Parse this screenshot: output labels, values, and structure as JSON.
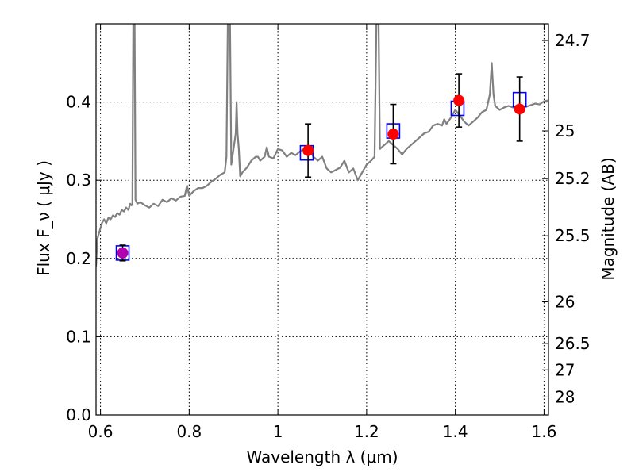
{
  "chart_data": {
    "type": "line",
    "xlabel": "Wavelength  λ (μm)",
    "ylabel": "Flux  F_ν  ( μJy )",
    "ylabel_right": "Magnitude (AB)",
    "xlim": [
      0.59,
      1.61
    ],
    "ylim": [
      0.0,
      0.5
    ],
    "grid": true,
    "x_ticks": [
      {
        "value": 0.6,
        "label": "0.6"
      },
      {
        "value": 0.8,
        "label": "0.8"
      },
      {
        "value": 1.0,
        "label": "1"
      },
      {
        "value": 1.2,
        "label": "1.2"
      },
      {
        "value": 1.4,
        "label": "1.4"
      },
      {
        "value": 1.6,
        "label": "1.6"
      }
    ],
    "y_ticks": [
      {
        "value": 0.0,
        "label": "0.0"
      },
      {
        "value": 0.1,
        "label": "0.1"
      },
      {
        "value": 0.2,
        "label": "0.2"
      },
      {
        "value": 0.3,
        "label": "0.3"
      },
      {
        "value": 0.4,
        "label": "0.4"
      }
    ],
    "right_ticks": [
      {
        "mag": 24.7,
        "label": "24.7"
      },
      {
        "mag": 25.0,
        "label": "25"
      },
      {
        "mag": 25.2,
        "label": "25.2"
      },
      {
        "mag": 25.5,
        "label": "25.5"
      },
      {
        "mag": 26.0,
        "label": "26"
      },
      {
        "mag": 26.5,
        "label": "26.5"
      },
      {
        "mag": 27.0,
        "label": "27"
      },
      {
        "mag": 28.0,
        "label": "28"
      }
    ],
    "colors": {
      "model": "#808080",
      "model_box": "#0000ff",
      "observed": "#ff0000",
      "observed_first": "#b000b0",
      "errorbar": "#000000"
    },
    "series": [
      {
        "kind": "model_spectrum",
        "points": [
          [
            0.59,
            0.19
          ],
          [
            0.593,
            0.225
          ],
          [
            0.598,
            0.235
          ],
          [
            0.603,
            0.245
          ],
          [
            0.608,
            0.25
          ],
          [
            0.613,
            0.245
          ],
          [
            0.618,
            0.252
          ],
          [
            0.623,
            0.25
          ],
          [
            0.628,
            0.255
          ],
          [
            0.633,
            0.253
          ],
          [
            0.638,
            0.258
          ],
          [
            0.643,
            0.256
          ],
          [
            0.648,
            0.262
          ],
          [
            0.653,
            0.26
          ],
          [
            0.658,
            0.265
          ],
          [
            0.663,
            0.262
          ],
          [
            0.667,
            0.27
          ],
          [
            0.67,
            0.268
          ],
          [
            0.672,
            0.27
          ],
          [
            0.674,
            0.5
          ],
          [
            0.677,
            0.5
          ],
          [
            0.679,
            0.275
          ],
          [
            0.683,
            0.27
          ],
          [
            0.69,
            0.272
          ],
          [
            0.7,
            0.268
          ],
          [
            0.71,
            0.265
          ],
          [
            0.72,
            0.27
          ],
          [
            0.73,
            0.267
          ],
          [
            0.74,
            0.275
          ],
          [
            0.75,
            0.272
          ],
          [
            0.76,
            0.277
          ],
          [
            0.77,
            0.274
          ],
          [
            0.78,
            0.279
          ],
          [
            0.79,
            0.28
          ],
          [
            0.795,
            0.293
          ],
          [
            0.8,
            0.28
          ],
          [
            0.81,
            0.286
          ],
          [
            0.82,
            0.29
          ],
          [
            0.83,
            0.29
          ],
          [
            0.84,
            0.293
          ],
          [
            0.85,
            0.298
          ],
          [
            0.86,
            0.302
          ],
          [
            0.87,
            0.307
          ],
          [
            0.88,
            0.31
          ],
          [
            0.884,
            0.33
          ],
          [
            0.887,
            0.5
          ],
          [
            0.892,
            0.5
          ],
          [
            0.895,
            0.32
          ],
          [
            0.9,
            0.34
          ],
          [
            0.905,
            0.36
          ],
          [
            0.907,
            0.4
          ],
          [
            0.909,
            0.36
          ],
          [
            0.912,
            0.34
          ],
          [
            0.915,
            0.305
          ],
          [
            0.92,
            0.31
          ],
          [
            0.93,
            0.316
          ],
          [
            0.94,
            0.325
          ],
          [
            0.95,
            0.33
          ],
          [
            0.955,
            0.33
          ],
          [
            0.96,
            0.325
          ],
          [
            0.97,
            0.33
          ],
          [
            0.975,
            0.342
          ],
          [
            0.98,
            0.33
          ],
          [
            0.99,
            0.328
          ],
          [
            1.0,
            0.34
          ],
          [
            1.01,
            0.338
          ],
          [
            1.02,
            0.33
          ],
          [
            1.03,
            0.335
          ],
          [
            1.04,
            0.332
          ],
          [
            1.05,
            0.337
          ],
          [
            1.06,
            0.34
          ],
          [
            1.07,
            0.34
          ],
          [
            1.08,
            0.33
          ],
          [
            1.09,
            0.325
          ],
          [
            1.1,
            0.33
          ],
          [
            1.11,
            0.315
          ],
          [
            1.12,
            0.31
          ],
          [
            1.13,
            0.313
          ],
          [
            1.14,
            0.316
          ],
          [
            1.15,
            0.325
          ],
          [
            1.16,
            0.31
          ],
          [
            1.17,
            0.315
          ],
          [
            1.18,
            0.3
          ],
          [
            1.19,
            0.31
          ],
          [
            1.2,
            0.32
          ],
          [
            1.21,
            0.325
          ],
          [
            1.218,
            0.33
          ],
          [
            1.222,
            0.5
          ],
          [
            1.227,
            0.5
          ],
          [
            1.23,
            0.34
          ],
          [
            1.24,
            0.345
          ],
          [
            1.25,
            0.35
          ],
          [
            1.26,
            0.345
          ],
          [
            1.27,
            0.34
          ],
          [
            1.28,
            0.333
          ],
          [
            1.29,
            0.34
          ],
          [
            1.3,
            0.345
          ],
          [
            1.31,
            0.35
          ],
          [
            1.32,
            0.355
          ],
          [
            1.33,
            0.36
          ],
          [
            1.34,
            0.362
          ],
          [
            1.35,
            0.37
          ],
          [
            1.36,
            0.372
          ],
          [
            1.37,
            0.37
          ],
          [
            1.375,
            0.378
          ],
          [
            1.38,
            0.372
          ],
          [
            1.39,
            0.38
          ],
          [
            1.4,
            0.39
          ],
          [
            1.41,
            0.383
          ],
          [
            1.42,
            0.375
          ],
          [
            1.43,
            0.37
          ],
          [
            1.44,
            0.375
          ],
          [
            1.45,
            0.38
          ],
          [
            1.46,
            0.387
          ],
          [
            1.47,
            0.39
          ],
          [
            1.478,
            0.41
          ],
          [
            1.482,
            0.45
          ],
          [
            1.486,
            0.41
          ],
          [
            1.49,
            0.395
          ],
          [
            1.5,
            0.39
          ],
          [
            1.51,
            0.393
          ],
          [
            1.52,
            0.395
          ],
          [
            1.53,
            0.393
          ],
          [
            1.54,
            0.396
          ],
          [
            1.55,
            0.395
          ],
          [
            1.56,
            0.394
          ],
          [
            1.57,
            0.396
          ],
          [
            1.58,
            0.398
          ],
          [
            1.59,
            0.397
          ],
          [
            1.6,
            0.401
          ],
          [
            1.61,
            0.402
          ]
        ]
      },
      {
        "kind": "model_photometry_boxes",
        "points": [
          {
            "x": 0.65,
            "y": 0.207
          },
          {
            "x": 1.065,
            "y": 0.335
          },
          {
            "x": 1.26,
            "y": 0.363
          },
          {
            "x": 1.405,
            "y": 0.392
          },
          {
            "x": 1.545,
            "y": 0.403
          }
        ]
      },
      {
        "kind": "observed_photometry",
        "points": [
          {
            "x": 0.65,
            "y": 0.207,
            "err": 0.01
          },
          {
            "x": 1.068,
            "y": 0.338,
            "err": 0.034
          },
          {
            "x": 1.26,
            "y": 0.359,
            "err": 0.038
          },
          {
            "x": 1.408,
            "y": 0.402,
            "err": 0.034
          },
          {
            "x": 1.545,
            "y": 0.391,
            "err": 0.041
          }
        ]
      }
    ]
  }
}
